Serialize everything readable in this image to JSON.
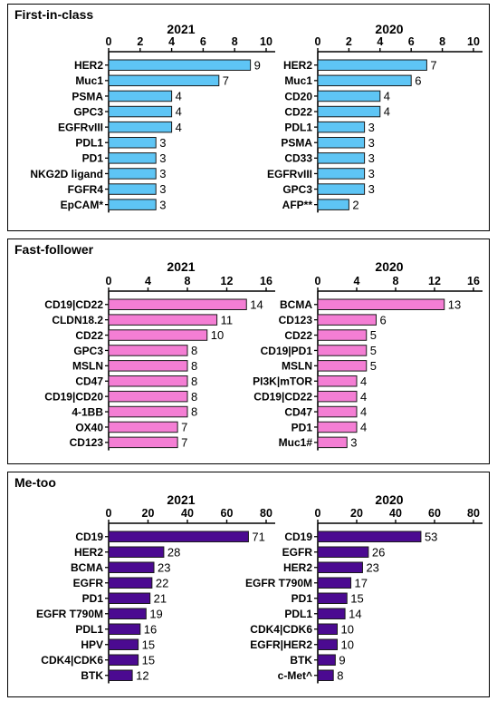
{
  "chart_data": [
    {
      "type": "bar",
      "panel": "First-in-class",
      "colors": {
        "bar": "#5ec5f5",
        "stroke": "#1a1a1a"
      },
      "charts": [
        {
          "title": "2021",
          "xlim": [
            0,
            10
          ],
          "ticks": [
            0,
            2,
            4,
            6,
            8,
            10
          ],
          "categories": [
            "HER2",
            "Muc1",
            "PSMA",
            "GPC3",
            "EGFRvIII",
            "PDL1",
            "PD1",
            "NKG2D ligand",
            "FGFR4",
            "EpCAM*"
          ],
          "values": [
            9,
            7,
            4,
            4,
            4,
            3,
            3,
            3,
            3,
            3
          ]
        },
        {
          "title": "2020",
          "xlim": [
            0,
            10
          ],
          "ticks": [
            0,
            2,
            4,
            6,
            8,
            10
          ],
          "categories": [
            "HER2",
            "Muc1",
            "CD20",
            "CD22",
            "PDL1",
            "PSMA",
            "CD33",
            "EGFRvIII",
            "GPC3",
            "AFP**"
          ],
          "values": [
            7,
            6,
            4,
            4,
            3,
            3,
            3,
            3,
            3,
            2
          ]
        }
      ]
    },
    {
      "type": "bar",
      "panel": "Fast-follower",
      "colors": {
        "bar": "#f47ed4",
        "stroke": "#1a1a1a"
      },
      "charts": [
        {
          "title": "2021",
          "xlim": [
            0,
            16
          ],
          "ticks": [
            0,
            4,
            8,
            12,
            16
          ],
          "categories": [
            "CD19|CD22",
            "CLDN18.2",
            "CD22",
            "GPC3",
            "MSLN",
            "CD47",
            "CD19|CD20",
            "4-1BB",
            "OX40",
            "CD123"
          ],
          "values": [
            14,
            11,
            10,
            8,
            8,
            8,
            8,
            8,
            7,
            7
          ]
        },
        {
          "title": "2020",
          "xlim": [
            0,
            16
          ],
          "ticks": [
            0,
            4,
            8,
            12,
            16
          ],
          "categories": [
            "BCMA",
            "CD123",
            "CD22",
            "CD19|PD1",
            "MSLN",
            "PI3K|mTOR",
            "CD19|CD22",
            "CD47",
            "PD1",
            "Muc1#"
          ],
          "values": [
            13,
            6,
            5,
            5,
            5,
            4,
            4,
            4,
            4,
            3
          ]
        }
      ]
    },
    {
      "type": "bar",
      "panel": "Me-too",
      "colors": {
        "bar": "#4b0a91",
        "stroke": "#1a1a1a"
      },
      "charts": [
        {
          "title": "2021",
          "xlim": [
            0,
            80
          ],
          "ticks": [
            0,
            20,
            40,
            60,
            80
          ],
          "categories": [
            "CD19",
            "HER2",
            "BCMA",
            "EGFR",
            "PD1",
            "EGFR T790M",
            "PDL1",
            "HPV",
            "CDK4|CDK6",
            "BTK"
          ],
          "values": [
            71,
            28,
            23,
            22,
            21,
            19,
            16,
            15,
            15,
            12
          ]
        },
        {
          "title": "2020",
          "xlim": [
            0,
            80
          ],
          "ticks": [
            0,
            20,
            40,
            60,
            80
          ],
          "categories": [
            "CD19",
            "EGFR",
            "HER2",
            "EGFR T790M",
            "PD1",
            "PDL1",
            "CDK4|CDK6",
            "EGFR|HER2",
            "BTK",
            "c-Met^"
          ],
          "values": [
            53,
            26,
            23,
            17,
            15,
            14,
            10,
            10,
            9,
            8
          ]
        }
      ]
    }
  ]
}
